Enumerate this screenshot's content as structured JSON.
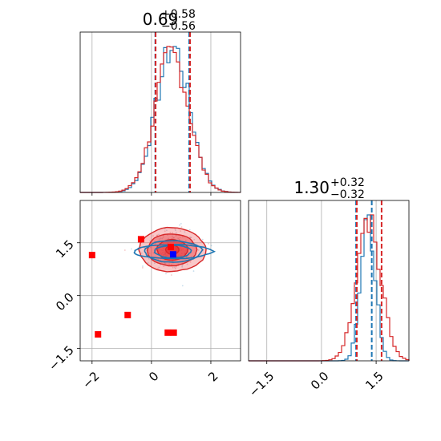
{
  "colors": {
    "blue": "#1f77b4",
    "red": "#d62728",
    "grid": "#b0b0b0",
    "red_fill": "#e8363a",
    "marker_blue": "#0000ff",
    "marker_red": "#ff0000"
  },
  "chart_data": [
    {
      "type": "histogram",
      "panel": "top-left",
      "parameter_index": 0,
      "title": {
        "median": "0.69",
        "plus": "+0.58",
        "minus": "−0.56"
      },
      "xlim": [
        -2.4,
        3.0
      ],
      "x_ticks": [
        -2,
        0,
        2
      ],
      "grid": true,
      "series": [
        {
          "name": "",
          "color": "#1f77b4",
          "mean": 0.72,
          "sd": 0.56,
          "quantile_lines": [
            0.13,
            1.27
          ]
        },
        {
          "name": "",
          "color": "#d62728",
          "mean": 0.69,
          "sd": 0.57,
          "quantile_lines": [
            0.14,
            1.3
          ]
        }
      ]
    },
    {
      "type": "scatter",
      "panel": "bottom-left",
      "xlim": [
        -2.4,
        3.0
      ],
      "ylim": [
        -1.85,
        2.7
      ],
      "x_ticks": [
        -2,
        0,
        2
      ],
      "x_tick_labels": [
        "−2",
        "0",
        "2"
      ],
      "y_ticks": [
        -1.5,
        0.0,
        1.5
      ],
      "y_tick_labels": [
        "−1.5",
        "0.0",
        "1.5"
      ],
      "grid": true,
      "contours": [
        {
          "color": "#d62728",
          "center": [
            0.7,
            1.3
          ],
          "levels": [
            [
              1.12,
              0.62
            ],
            [
              0.82,
              0.45
            ],
            [
              0.52,
              0.29
            ],
            [
              0.22,
              0.13
            ]
          ]
        },
        {
          "color": "#1f77b4",
          "center": [
            0.72,
            1.25
          ],
          "levels": [
            [
              1.3,
              0.2
            ],
            [
              0.95,
              0.3
            ],
            [
              0.6,
              0.18
            ]
          ]
        }
      ],
      "red_markers": [
        {
          "x": -2.0,
          "y": 1.15
        },
        {
          "x": -1.8,
          "y": -1.1
        },
        {
          "x": -0.8,
          "y": -0.55
        },
        {
          "x": -0.35,
          "y": 1.6
        },
        {
          "x": 0.55,
          "y": -1.05
        },
        {
          "x": 0.75,
          "y": -1.05
        },
        {
          "x": 0.65,
          "y": 1.38
        }
      ],
      "blue_markers": [
        {
          "x": 0.73,
          "y": 1.17
        }
      ]
    },
    {
      "type": "histogram",
      "panel": "bottom-right",
      "parameter_index": 1,
      "title": {
        "median": "1.30",
        "plus": "+0.32",
        "minus": "−0.32"
      },
      "xlim": [
        -2.0,
        2.4
      ],
      "x_ticks": [
        -1.5,
        0.0,
        1.5
      ],
      "x_tick_labels": [
        "−1.5",
        "0.0",
        "1.5"
      ],
      "grid": true,
      "series": [
        {
          "name": "",
          "color": "#1f77b4",
          "mean": 1.28,
          "sd": 0.2,
          "quantile_lines": [
            0.95,
            1.38
          ]
        },
        {
          "name": "",
          "color": "#d62728",
          "mean": 1.3,
          "sd": 0.34,
          "quantile_lines": [
            0.97,
            1.65
          ]
        }
      ]
    }
  ]
}
